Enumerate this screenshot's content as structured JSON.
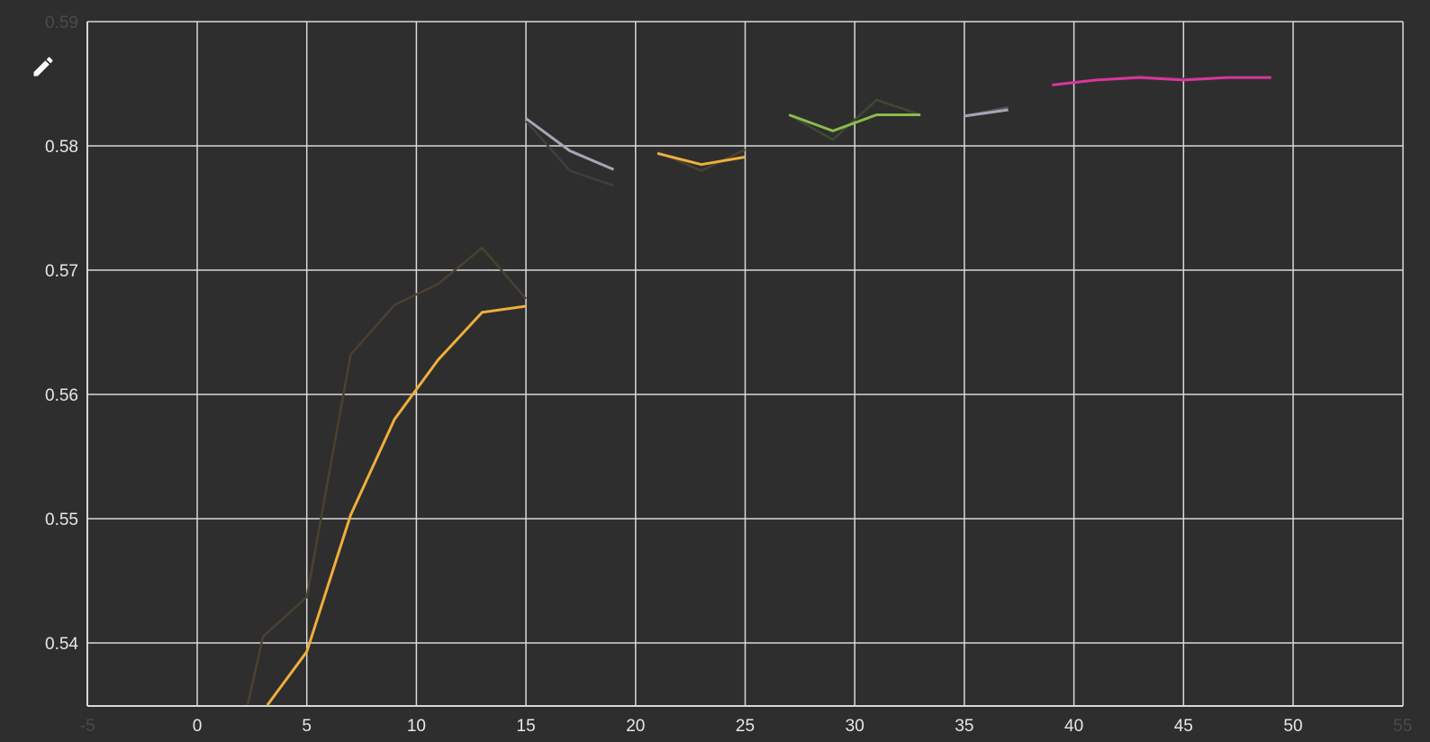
{
  "toolbar": {
    "edit_icon": "pencil-icon"
  },
  "chart_data": {
    "type": "line",
    "title": "",
    "xlabel": "",
    "ylabel": "",
    "xlim": [
      -5,
      55
    ],
    "ylim": [
      0.535,
      0.59
    ],
    "grid": true,
    "legend": "none",
    "x_ticks": [
      -5,
      0,
      5,
      10,
      15,
      20,
      25,
      30,
      35,
      40,
      45,
      50,
      55
    ],
    "x_tick_labels": [
      "-5",
      "0",
      "5",
      "10",
      "15",
      "20",
      "25",
      "30",
      "35",
      "40",
      "45",
      "50",
      "55"
    ],
    "y_ticks": [
      0.54,
      0.55,
      0.56,
      0.57,
      0.58,
      0.59
    ],
    "y_tick_labels": [
      "0.54",
      "0.55",
      "0.56",
      "0.57",
      "0.58",
      "0.59"
    ],
    "colors": {
      "background": "#2e2e2e",
      "grid": "#d9d9d9",
      "text": "#e8e8e8",
      "orange": "#f0ae3c",
      "gray": "#a3a7b3",
      "green": "#8bbb4a",
      "magenta": "#d9369b",
      "raw": "#4a4538"
    },
    "series": [
      {
        "color": "#4a4131",
        "width": 2.5,
        "x": [
          2.3,
          3,
          5,
          7,
          9,
          11,
          13,
          15
        ],
        "y": [
          0.535,
          0.5405,
          0.5437,
          0.5632,
          0.5672,
          0.5689,
          0.5718,
          0.5677
        ]
      },
      {
        "color": "#f0ae3c",
        "width": 3,
        "x": [
          3.2,
          5,
          7,
          9,
          11,
          13,
          15
        ],
        "y": [
          0.535,
          0.5393,
          0.5503,
          0.558,
          0.5628,
          0.5666,
          0.5671
        ]
      },
      {
        "color": "#3f3f3f",
        "width": 2.5,
        "x": [
          15,
          17,
          19
        ],
        "y": [
          0.582,
          0.578,
          0.5768
        ]
      },
      {
        "color": "#a3a7b3",
        "width": 3,
        "x": [
          15,
          17,
          19
        ],
        "y": [
          0.5822,
          0.5796,
          0.5781
        ]
      },
      {
        "color": "#4a4131",
        "width": 2.5,
        "x": [
          21,
          23,
          25
        ],
        "y": [
          0.5795,
          0.578,
          0.5797
        ]
      },
      {
        "color": "#f0ae3c",
        "width": 3,
        "x": [
          21,
          23,
          25
        ],
        "y": [
          0.5794,
          0.5785,
          0.5791
        ]
      },
      {
        "color": "#3d4a33",
        "width": 2.5,
        "x": [
          27,
          29,
          31,
          33
        ],
        "y": [
          0.5825,
          0.5805,
          0.5837,
          0.5825
        ]
      },
      {
        "color": "#8bbb4a",
        "width": 3,
        "x": [
          27,
          29,
          31,
          33
        ],
        "y": [
          0.5825,
          0.5812,
          0.5825,
          0.5825
        ]
      },
      {
        "color": "#555555",
        "width": 2.5,
        "x": [
          35,
          37
        ],
        "y": [
          0.5824,
          0.5831
        ]
      },
      {
        "color": "#a3a7b3",
        "width": 3,
        "x": [
          35,
          37
        ],
        "y": [
          0.5824,
          0.5829
        ]
      },
      {
        "color": "#4a3240",
        "width": 2.5,
        "x": [
          39,
          41,
          43,
          45,
          47,
          49
        ],
        "y": [
          0.5849,
          0.5853,
          0.5856,
          0.5854,
          0.5855,
          0.5855
        ]
      },
      {
        "color": "#d9369b",
        "width": 3,
        "x": [
          39,
          41,
          43,
          45,
          47,
          49
        ],
        "y": [
          0.5849,
          0.5853,
          0.5855,
          0.5853,
          0.5855,
          0.5855
        ]
      }
    ]
  }
}
